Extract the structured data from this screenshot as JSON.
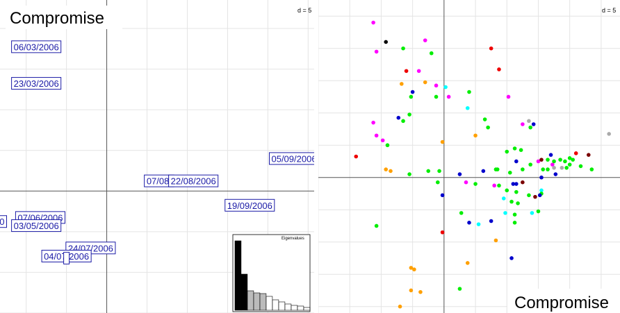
{
  "chart_data": [
    {
      "type": "scatter",
      "title": "Compromise",
      "scale_label": "d = 5",
      "xlim": [
        -5.3,
        10.3
      ],
      "ylim": [
        -6.0,
        9.4
      ],
      "grid": true,
      "points": [
        {
          "label": "06/03/2006",
          "x": -3.5,
          "y": 7.1
        },
        {
          "label": "23/03/2006",
          "x": -3.5,
          "y": 5.3
        },
        {
          "label": "05/09/2006",
          "x": 9.3,
          "y": 1.6
        },
        {
          "label": "07/08/",
          "x": 2.6,
          "y": 0.5
        },
        {
          "label": "22/08/2006",
          "x": 4.3,
          "y": 0.5
        },
        {
          "label": "19/09/2006",
          "x": 7.1,
          "y": -0.7
        },
        {
          "label": "0",
          "x": -5.2,
          "y": -1.5
        },
        {
          "label": "07/06/2006",
          "x": -3.3,
          "y": -1.3
        },
        {
          "label": "03/05/2006",
          "x": -3.5,
          "y": -1.7
        },
        {
          "label": "24/07/2006",
          "x": -0.8,
          "y": -2.8
        },
        {
          "label": "04/07/2006",
          "x": -2.0,
          "y": -3.2
        },
        {
          "label": "",
          "x": -2.0,
          "y": -3.3
        }
      ],
      "inset": {
        "title": "Eigenvalues",
        "values": [
          100,
          52,
          28,
          25,
          24,
          20,
          15,
          12,
          9,
          7,
          6,
          4
        ],
        "colors": [
          "#000000",
          "#000000",
          "#bbbbbb",
          "#bbbbbb",
          "#bbbbbb",
          "#ffffff",
          "#ffffff",
          "#ffffff",
          "#ffffff",
          "#ffffff",
          "#ffffff",
          "#ffffff"
        ]
      }
    },
    {
      "type": "scatter",
      "title": "Compromise",
      "scale_label": "d = 5",
      "xlim": [
        -8.0,
        11.2
      ],
      "ylim": [
        -8.4,
        11.0
      ],
      "grid": true,
      "points": [
        {
          "x": -4.5,
          "y": 9.6,
          "color": "#ff00ff"
        },
        {
          "x": -3.7,
          "y": 8.4,
          "color": "#000000"
        },
        {
          "x": -4.3,
          "y": 7.8,
          "color": "#ff00ff"
        },
        {
          "x": -2.6,
          "y": 8.0,
          "color": "#00ee00"
        },
        {
          "x": -1.2,
          "y": 8.5,
          "color": "#ff00ff"
        },
        {
          "x": -0.8,
          "y": 7.7,
          "color": "#00ee00"
        },
        {
          "x": 3.0,
          "y": 8.0,
          "color": "#ee0000"
        },
        {
          "x": 3.5,
          "y": 6.7,
          "color": "#ee0000"
        },
        {
          "x": -2.4,
          "y": 6.6,
          "color": "#ee0000"
        },
        {
          "x": -1.6,
          "y": 6.6,
          "color": "#ff00ff"
        },
        {
          "x": -2.7,
          "y": 5.8,
          "color": "#ffa000"
        },
        {
          "x": -1.2,
          "y": 5.9,
          "color": "#ffa000"
        },
        {
          "x": -0.5,
          "y": 5.7,
          "color": "#ff00ff"
        },
        {
          "x": 0.1,
          "y": 5.6,
          "color": "#00ffff"
        },
        {
          "x": -2.0,
          "y": 5.3,
          "color": "#0000cc"
        },
        {
          "x": -2.1,
          "y": 5.0,
          "color": "#00ee00"
        },
        {
          "x": -0.5,
          "y": 5.0,
          "color": "#00ee00"
        },
        {
          "x": 0.3,
          "y": 5.0,
          "color": "#ff00ff"
        },
        {
          "x": 1.6,
          "y": 5.3,
          "color": "#00ee00"
        },
        {
          "x": 4.1,
          "y": 5.0,
          "color": "#ff00ff"
        },
        {
          "x": 1.5,
          "y": 4.3,
          "color": "#00ffff"
        },
        {
          "x": -2.9,
          "y": 3.7,
          "color": "#0000cc"
        },
        {
          "x": -2.6,
          "y": 3.5,
          "color": "#00ee00"
        },
        {
          "x": -2.2,
          "y": 3.9,
          "color": "#00ee00"
        },
        {
          "x": -4.5,
          "y": 3.4,
          "color": "#ff00ff"
        },
        {
          "x": 2.6,
          "y": 3.6,
          "color": "#00ee00"
        },
        {
          "x": 2.8,
          "y": 3.1,
          "color": "#00ee00"
        },
        {
          "x": 2.0,
          "y": 2.6,
          "color": "#ffa000"
        },
        {
          "x": 5.0,
          "y": 3.3,
          "color": "#ff00ff"
        },
        {
          "x": 5.4,
          "y": 3.5,
          "color": "#aaaaaa"
        },
        {
          "x": 5.7,
          "y": 3.3,
          "color": "#0000cc"
        },
        {
          "x": 5.5,
          "y": 3.1,
          "color": "#00ee00"
        },
        {
          "x": -4.3,
          "y": 2.6,
          "color": "#ff00ff"
        },
        {
          "x": -3.9,
          "y": 2.3,
          "color": "#ff00ff"
        },
        {
          "x": -3.6,
          "y": 2.0,
          "color": "#00ee00"
        },
        {
          "x": -0.1,
          "y": 2.2,
          "color": "#ffa000"
        },
        {
          "x": -5.6,
          "y": 1.3,
          "color": "#ee0000"
        },
        {
          "x": 4.0,
          "y": 1.6,
          "color": "#00ee00"
        },
        {
          "x": 4.5,
          "y": 1.8,
          "color": "#00ee00"
        },
        {
          "x": 4.9,
          "y": 1.7,
          "color": "#00ee00"
        },
        {
          "x": 4.6,
          "y": 1.0,
          "color": "#0000cc"
        },
        {
          "x": 3.4,
          "y": 0.5,
          "color": "#00ee00"
        },
        {
          "x": 4.2,
          "y": 0.3,
          "color": "#00ee00"
        },
        {
          "x": 5.5,
          "y": 0.8,
          "color": "#00ee00"
        },
        {
          "x": 6.0,
          "y": 1.0,
          "color": "#ff00ff"
        },
        {
          "x": 6.2,
          "y": 1.1,
          "color": "#7a0000"
        },
        {
          "x": 6.6,
          "y": 1.1,
          "color": "#00ee00"
        },
        {
          "x": 6.8,
          "y": 1.4,
          "color": "#0000cc"
        },
        {
          "x": 6.9,
          "y": 0.8,
          "color": "#ff00ff"
        },
        {
          "x": 7.0,
          "y": 1.0,
          "color": "#00ee00"
        },
        {
          "x": 7.4,
          "y": 1.1,
          "color": "#00ee00"
        },
        {
          "x": 7.7,
          "y": 1.0,
          "color": "#00ee00"
        },
        {
          "x": 8.0,
          "y": 1.2,
          "color": "#00ee00"
        },
        {
          "x": 8.2,
          "y": 1.1,
          "color": "#00ee00"
        },
        {
          "x": 8.4,
          "y": 1.5,
          "color": "#ee0000"
        },
        {
          "x": 9.2,
          "y": 1.4,
          "color": "#7a0000"
        },
        {
          "x": 8.7,
          "y": 0.7,
          "color": "#00ee00"
        },
        {
          "x": 9.4,
          "y": 0.5,
          "color": "#00ee00"
        },
        {
          "x": 10.5,
          "y": 2.7,
          "color": "#aaaaaa"
        },
        {
          "x": 7.5,
          "y": 0.6,
          "color": "#aaaaaa"
        },
        {
          "x": 7.0,
          "y": 0.6,
          "color": "#aaaaaa"
        },
        {
          "x": 7.1,
          "y": 0.2,
          "color": "#0000cc"
        },
        {
          "x": 6.3,
          "y": 0.5,
          "color": "#00ee00"
        },
        {
          "x": 6.6,
          "y": 0.5,
          "color": "#00ee00"
        },
        {
          "x": 7.8,
          "y": 0.6,
          "color": "#00ee00"
        },
        {
          "x": 8.0,
          "y": 0.8,
          "color": "#00ee00"
        },
        {
          "x": 5.0,
          "y": 0.5,
          "color": "#00ee00"
        },
        {
          "x": 6.2,
          "y": 0.0,
          "color": "#0000cc"
        },
        {
          "x": -3.7,
          "y": 0.5,
          "color": "#ffa000"
        },
        {
          "x": -3.4,
          "y": 0.4,
          "color": "#ffa000"
        },
        {
          "x": -2.2,
          "y": 0.2,
          "color": "#00ee00"
        },
        {
          "x": -1.0,
          "y": 0.4,
          "color": "#00ee00"
        },
        {
          "x": -0.3,
          "y": 0.4,
          "color": "#00ee00"
        },
        {
          "x": 1.0,
          "y": 0.2,
          "color": "#0000cc"
        },
        {
          "x": 2.5,
          "y": 0.4,
          "color": "#0000cc"
        },
        {
          "x": 3.3,
          "y": 0.5,
          "color": "#00ee00"
        },
        {
          "x": -0.4,
          "y": -0.3,
          "color": "#00ee00"
        },
        {
          "x": 1.4,
          "y": -0.3,
          "color": "#ff00ff"
        },
        {
          "x": 2.0,
          "y": -0.4,
          "color": "#00ee00"
        },
        {
          "x": 3.2,
          "y": -0.5,
          "color": "#ff00ff"
        },
        {
          "x": 3.5,
          "y": -0.5,
          "color": "#00ee00"
        },
        {
          "x": 4.4,
          "y": -0.4,
          "color": "#0000cc"
        },
        {
          "x": 4.6,
          "y": -0.4,
          "color": "#0000cc"
        },
        {
          "x": 5.0,
          "y": -0.3,
          "color": "#7a0000"
        },
        {
          "x": 4.0,
          "y": -0.8,
          "color": "#00ee00"
        },
        {
          "x": 4.6,
          "y": -0.9,
          "color": "#00ee00"
        },
        {
          "x": 6.2,
          "y": -0.8,
          "color": "#00ffff"
        },
        {
          "x": 6.2,
          "y": -1.0,
          "color": "#00ee00"
        },
        {
          "x": 5.4,
          "y": -1.1,
          "color": "#00ee00"
        },
        {
          "x": 6.1,
          "y": -1.1,
          "color": "#0000cc"
        },
        {
          "x": 5.8,
          "y": -1.2,
          "color": "#7a0000"
        },
        {
          "x": 3.8,
          "y": -1.3,
          "color": "#00ffff"
        },
        {
          "x": 4.3,
          "y": -1.5,
          "color": "#00ee00"
        },
        {
          "x": 4.7,
          "y": -1.6,
          "color": "#00ee00"
        },
        {
          "x": 3.9,
          "y": -2.2,
          "color": "#00ffff"
        },
        {
          "x": 4.5,
          "y": -2.3,
          "color": "#00ee00"
        },
        {
          "x": 5.6,
          "y": -2.2,
          "color": "#00ffff"
        },
        {
          "x": 6.0,
          "y": -2.1,
          "color": "#00ee00"
        },
        {
          "x": 4.5,
          "y": -2.8,
          "color": "#00ee00"
        },
        {
          "x": -0.1,
          "y": -1.1,
          "color": "#0000cc"
        },
        {
          "x": 1.1,
          "y": -2.2,
          "color": "#00ee00"
        },
        {
          "x": 1.6,
          "y": -2.8,
          "color": "#0000cc"
        },
        {
          "x": 2.2,
          "y": -2.9,
          "color": "#00ffff"
        },
        {
          "x": 3.0,
          "y": -2.7,
          "color": "#0000cc"
        },
        {
          "x": 3.3,
          "y": -3.9,
          "color": "#ffa000"
        },
        {
          "x": 4.3,
          "y": -5.0,
          "color": "#0000cc"
        },
        {
          "x": -0.1,
          "y": -3.4,
          "color": "#ee0000"
        },
        {
          "x": -4.3,
          "y": -3.0,
          "color": "#00ee00"
        },
        {
          "x": 1.5,
          "y": -5.3,
          "color": "#ffa000"
        },
        {
          "x": -2.1,
          "y": -5.6,
          "color": "#ffa000"
        },
        {
          "x": -1.9,
          "y": -5.7,
          "color": "#ffa000"
        },
        {
          "x": -2.1,
          "y": -7.0,
          "color": "#ffa000"
        },
        {
          "x": -1.5,
          "y": -7.1,
          "color": "#ffa000"
        },
        {
          "x": 1.0,
          "y": -6.9,
          "color": "#00ee00"
        },
        {
          "x": -2.8,
          "y": -8.0,
          "color": "#ffa000"
        }
      ]
    }
  ]
}
